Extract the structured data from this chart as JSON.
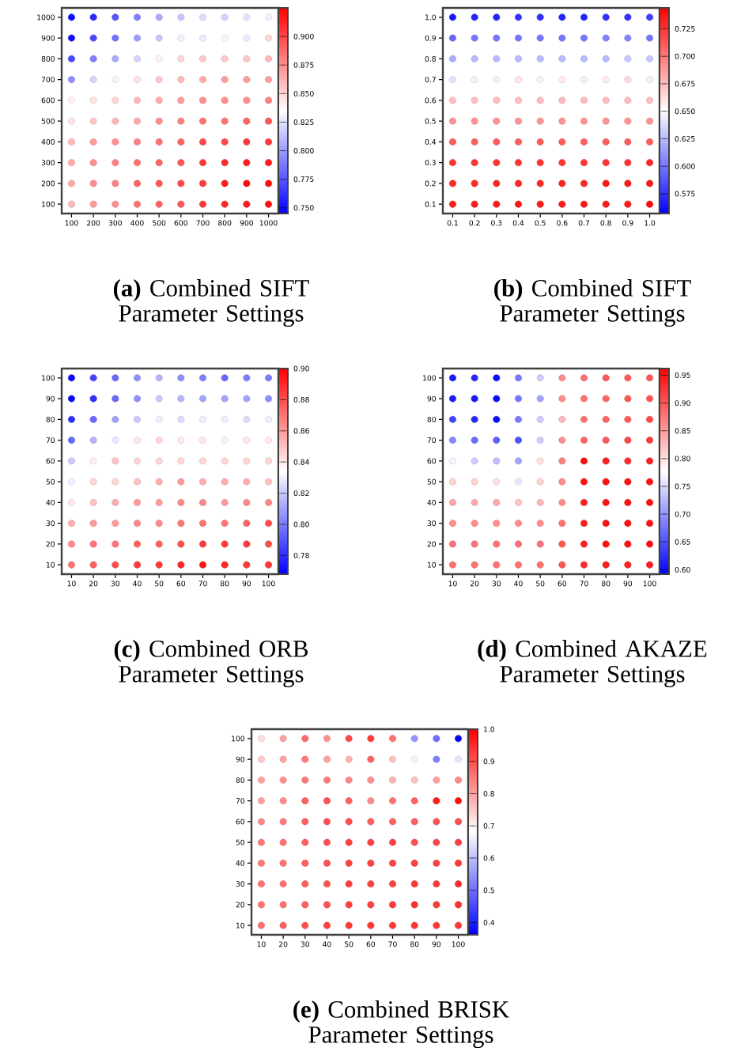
{
  "chart_data": [
    {
      "type": "scatter",
      "title": "**(a)** Combined SIFT Parameter Settings",
      "marker": "circle",
      "xlim": [
        55,
        1045
      ],
      "ylim": [
        55,
        1045
      ],
      "xticks": [
        100,
        200,
        300,
        400,
        500,
        600,
        700,
        800,
        900,
        1000
      ],
      "yticks": [
        100,
        200,
        300,
        400,
        500,
        600,
        700,
        800,
        900,
        1000
      ],
      "x": [
        100,
        200,
        300,
        400,
        500,
        600,
        700,
        800,
        900,
        1000,
        100,
        200,
        300,
        400,
        500,
        600,
        700,
        800,
        900,
        1000,
        100,
        200,
        300,
        400,
        500,
        600,
        700,
        800,
        900,
        1000,
        100,
        200,
        300,
        400,
        500,
        600,
        700,
        800,
        900,
        1000,
        100,
        200,
        300,
        400,
        500,
        600,
        700,
        800,
        900,
        1000,
        100,
        200,
        300,
        400,
        500,
        600,
        700,
        800,
        900,
        1000,
        100,
        200,
        300,
        400,
        500,
        600,
        700,
        800,
        900,
        1000,
        100,
        200,
        300,
        400,
        500,
        600,
        700,
        800,
        900,
        1000,
        100,
        200,
        300,
        400,
        500,
        600,
        700,
        800,
        900,
        1000,
        100,
        200,
        300,
        400,
        500,
        600,
        700,
        800,
        900,
        1000
      ],
      "values": [
        1000,
        1000,
        1000,
        1000,
        1000,
        1000,
        1000,
        1000,
        1000,
        1000,
        900,
        900,
        900,
        900,
        900,
        900,
        900,
        900,
        900,
        900,
        800,
        800,
        800,
        800,
        800,
        800,
        800,
        800,
        800,
        800,
        700,
        700,
        700,
        700,
        700,
        700,
        700,
        700,
        700,
        700,
        600,
        600,
        600,
        600,
        600,
        600,
        600,
        600,
        600,
        600,
        500,
        500,
        500,
        500,
        500,
        500,
        500,
        500,
        500,
        500,
        400,
        400,
        400,
        400,
        400,
        400,
        400,
        400,
        400,
        400,
        300,
        300,
        300,
        300,
        300,
        300,
        300,
        300,
        300,
        300,
        200,
        200,
        200,
        200,
        200,
        200,
        200,
        200,
        200,
        200,
        100,
        100,
        100,
        100,
        100,
        100,
        100,
        100,
        100,
        100
      ],
      "cvalues": [
        0.75,
        0.76,
        0.775,
        0.79,
        0.805,
        0.815,
        0.822,
        0.82,
        0.825,
        0.83,
        0.75,
        0.77,
        0.785,
        0.8,
        0.815,
        0.83,
        0.828,
        0.832,
        0.828,
        0.85,
        0.77,
        0.79,
        0.805,
        0.82,
        0.84,
        0.85,
        0.855,
        0.855,
        0.855,
        0.86,
        0.795,
        0.82,
        0.84,
        0.845,
        0.855,
        0.86,
        0.865,
        0.87,
        0.87,
        0.87,
        0.84,
        0.845,
        0.85,
        0.86,
        0.865,
        0.87,
        0.875,
        0.875,
        0.875,
        0.88,
        0.845,
        0.855,
        0.86,
        0.865,
        0.875,
        0.88,
        0.885,
        0.885,
        0.89,
        0.895,
        0.86,
        0.87,
        0.875,
        0.88,
        0.885,
        0.89,
        0.9,
        0.9,
        0.905,
        0.905,
        0.865,
        0.875,
        0.88,
        0.885,
        0.89,
        0.895,
        0.905,
        0.91,
        0.915,
        0.915,
        0.865,
        0.875,
        0.88,
        0.89,
        0.895,
        0.9,
        0.905,
        0.915,
        0.92,
        0.92,
        0.86,
        0.87,
        0.875,
        0.885,
        0.89,
        0.895,
        0.905,
        0.91,
        0.915,
        0.92
      ],
      "clim": [
        0.745,
        0.925
      ],
      "cticks": [
        {
          "value": 0.75,
          "label": "0.750"
        },
        0.775,
        {
          "value": 0.8,
          "label": "0.800"
        },
        0.825,
        {
          "value": 0.85,
          "label": "0.850"
        },
        0.875,
        {
          "value": 0.9,
          "label": "0.900"
        }
      ]
    },
    {
      "type": "scatter",
      "title": "**(b)** Combined SIFT Parameter Settings",
      "marker": "circle",
      "xlim": [
        0.055,
        1.045
      ],
      "ylim": [
        0.055,
        1.045
      ],
      "xticks": [
        0.1,
        0.2,
        0.3,
        0.4,
        0.5,
        0.6,
        0.7,
        0.8,
        0.9,
        {
          "value": 1.0,
          "label": "1.0"
        }
      ],
      "yticks": [
        0.1,
        0.2,
        0.3,
        0.4,
        0.5,
        0.6,
        0.7,
        0.8,
        0.9,
        {
          "value": 1.0,
          "label": "1.0"
        }
      ],
      "x": [
        0.1,
        0.2,
        0.3,
        0.4,
        0.5,
        0.6,
        0.7,
        0.8,
        0.9,
        1.0,
        0.1,
        0.2,
        0.3,
        0.4,
        0.5,
        0.6,
        0.7,
        0.8,
        0.9,
        1.0,
        0.1,
        0.2,
        0.3,
        0.4,
        0.5,
        0.6,
        0.7,
        0.8,
        0.9,
        1.0,
        0.1,
        0.2,
        0.3,
        0.4,
        0.5,
        0.6,
        0.7,
        0.8,
        0.9,
        1.0,
        0.1,
        0.2,
        0.3,
        0.4,
        0.5,
        0.6,
        0.7,
        0.8,
        0.9,
        1.0,
        0.1,
        0.2,
        0.3,
        0.4,
        0.5,
        0.6,
        0.7,
        0.8,
        0.9,
        1.0,
        0.1,
        0.2,
        0.3,
        0.4,
        0.5,
        0.6,
        0.7,
        0.8,
        0.9,
        1.0,
        0.1,
        0.2,
        0.3,
        0.4,
        0.5,
        0.6,
        0.7,
        0.8,
        0.9,
        1.0,
        0.1,
        0.2,
        0.3,
        0.4,
        0.5,
        0.6,
        0.7,
        0.8,
        0.9,
        1.0,
        0.1,
        0.2,
        0.3,
        0.4,
        0.5,
        0.6,
        0.7,
        0.8,
        0.9,
        1.0
      ],
      "values": [
        1.0,
        1.0,
        1.0,
        1.0,
        1.0,
        1.0,
        1.0,
        1.0,
        1.0,
        1.0,
        0.9,
        0.9,
        0.9,
        0.9,
        0.9,
        0.9,
        0.9,
        0.9,
        0.9,
        0.9,
        0.8,
        0.8,
        0.8,
        0.8,
        0.8,
        0.8,
        0.8,
        0.8,
        0.8,
        0.8,
        0.7,
        0.7,
        0.7,
        0.7,
        0.7,
        0.7,
        0.7,
        0.7,
        0.7,
        0.7,
        0.6,
        0.6,
        0.6,
        0.6,
        0.6,
        0.6,
        0.6,
        0.6,
        0.6,
        0.6,
        0.5,
        0.5,
        0.5,
        0.5,
        0.5,
        0.5,
        0.5,
        0.5,
        0.5,
        0.5,
        0.4,
        0.4,
        0.4,
        0.4,
        0.4,
        0.4,
        0.4,
        0.4,
        0.4,
        0.4,
        0.3,
        0.3,
        0.3,
        0.3,
        0.3,
        0.3,
        0.3,
        0.3,
        0.3,
        0.3,
        0.2,
        0.2,
        0.2,
        0.2,
        0.2,
        0.2,
        0.2,
        0.2,
        0.2,
        0.2,
        0.1,
        0.1,
        0.1,
        0.1,
        0.1,
        0.1,
        0.1,
        0.1,
        0.1,
        0.1
      ],
      "cvalues": [
        0.565,
        0.57,
        0.57,
        0.575,
        0.575,
        0.57,
        0.57,
        0.575,
        0.575,
        0.58,
        0.595,
        0.6,
        0.6,
        0.6,
        0.6,
        0.6,
        0.6,
        0.605,
        0.605,
        0.6,
        0.62,
        0.625,
        0.625,
        0.625,
        0.625,
        0.625,
        0.625,
        0.625,
        0.63,
        0.63,
        0.64,
        0.645,
        0.656,
        0.66,
        0.656,
        0.658,
        0.645,
        0.658,
        0.665,
        0.645,
        0.675,
        0.675,
        0.675,
        0.675,
        0.675,
        0.675,
        0.675,
        0.675,
        0.675,
        0.675,
        0.69,
        0.69,
        0.69,
        0.69,
        0.69,
        0.69,
        0.69,
        0.69,
        0.69,
        0.69,
        0.71,
        0.71,
        0.71,
        0.71,
        0.71,
        0.71,
        0.71,
        0.71,
        0.71,
        0.71,
        0.725,
        0.725,
        0.725,
        0.725,
        0.725,
        0.725,
        0.725,
        0.725,
        0.725,
        0.73,
        0.73,
        0.73,
        0.73,
        0.73,
        0.73,
        0.73,
        0.73,
        0.735,
        0.735,
        0.735,
        0.735,
        0.735,
        0.735,
        0.735,
        0.735,
        0.735,
        0.735,
        0.735,
        0.735,
        0.74
      ],
      "clim": [
        0.557,
        0.744
      ],
      "cticks": [
        0.575,
        {
          "value": 0.6,
          "label": "0.600"
        },
        0.625,
        {
          "value": 0.65,
          "label": "0.650"
        },
        0.675,
        {
          "value": 0.7,
          "label": "0.700"
        },
        0.725
      ]
    },
    {
      "type": "scatter",
      "title": "**(c)** Combined ORB Parameter Settings",
      "marker": "circle",
      "xlim": [
        5.5,
        104.5
      ],
      "ylim": [
        5.5,
        104.5
      ],
      "xticks": [
        10,
        20,
        30,
        40,
        50,
        60,
        70,
        80,
        90,
        100
      ],
      "yticks": [
        10,
        20,
        30,
        40,
        50,
        60,
        70,
        80,
        90,
        100
      ],
      "x": [
        10,
        20,
        30,
        40,
        50,
        60,
        70,
        80,
        90,
        100,
        10,
        20,
        30,
        40,
        50,
        60,
        70,
        80,
        90,
        100,
        10,
        20,
        30,
        40,
        50,
        60,
        70,
        80,
        90,
        100,
        10,
        20,
        30,
        40,
        50,
        60,
        70,
        80,
        90,
        100,
        10,
        20,
        30,
        40,
        50,
        60,
        70,
        80,
        90,
        100,
        10,
        20,
        30,
        40,
        50,
        60,
        70,
        80,
        90,
        100,
        10,
        20,
        30,
        40,
        50,
        60,
        70,
        80,
        90,
        100,
        10,
        20,
        30,
        40,
        50,
        60,
        70,
        80,
        90,
        100,
        10,
        20,
        30,
        40,
        50,
        60,
        70,
        80,
        90,
        100,
        10,
        20,
        30,
        40,
        50,
        60,
        70,
        80,
        90,
        100
      ],
      "values": [
        100,
        100,
        100,
        100,
        100,
        100,
        100,
        100,
        100,
        100,
        90,
        90,
        90,
        90,
        90,
        90,
        90,
        90,
        90,
        90,
        80,
        80,
        80,
        80,
        80,
        80,
        80,
        80,
        80,
        80,
        70,
        70,
        70,
        70,
        70,
        70,
        70,
        70,
        70,
        70,
        60,
        60,
        60,
        60,
        60,
        60,
        60,
        60,
        60,
        60,
        50,
        50,
        50,
        50,
        50,
        50,
        50,
        50,
        50,
        50,
        40,
        40,
        40,
        40,
        40,
        40,
        40,
        40,
        40,
        40,
        30,
        30,
        30,
        30,
        30,
        30,
        30,
        30,
        30,
        30,
        20,
        20,
        20,
        20,
        20,
        20,
        20,
        20,
        20,
        20,
        10,
        10,
        10,
        10,
        10,
        10,
        10,
        10,
        10,
        10
      ],
      "cvalues": [
        0.77,
        0.785,
        0.795,
        0.805,
        0.815,
        0.805,
        0.8,
        0.795,
        0.8,
        0.8,
        0.77,
        0.78,
        0.795,
        0.805,
        0.82,
        0.815,
        0.81,
        0.81,
        0.81,
        0.805,
        0.78,
        0.795,
        0.81,
        0.82,
        0.83,
        0.825,
        0.83,
        0.83,
        0.825,
        0.83,
        0.795,
        0.815,
        0.828,
        0.84,
        0.845,
        0.84,
        0.84,
        0.838,
        0.84,
        0.84,
        0.82,
        0.838,
        0.85,
        0.845,
        0.845,
        0.845,
        0.845,
        0.845,
        0.845,
        0.845,
        0.83,
        0.845,
        0.845,
        0.85,
        0.855,
        0.86,
        0.855,
        0.855,
        0.855,
        0.85,
        0.84,
        0.85,
        0.855,
        0.86,
        0.86,
        0.865,
        0.865,
        0.86,
        0.865,
        0.865,
        0.855,
        0.86,
        0.86,
        0.865,
        0.865,
        0.87,
        0.87,
        0.87,
        0.875,
        0.88,
        0.865,
        0.87,
        0.87,
        0.875,
        0.875,
        0.88,
        0.885,
        0.885,
        0.885,
        0.88,
        0.87,
        0.875,
        0.88,
        0.885,
        0.885,
        0.89,
        0.895,
        0.89,
        0.885,
        0.885
      ],
      "clim": [
        0.768,
        0.9
      ],
      "cticks": [
        0.78,
        {
          "value": 0.8,
          "label": "0.80"
        },
        0.82,
        0.84,
        0.86,
        0.88,
        {
          "value": 0.9,
          "label": "0.90"
        }
      ]
    },
    {
      "type": "scatter",
      "title": "**(d)** Combined AKAZE Parameter Settings",
      "marker": "circle",
      "xlim": [
        5.5,
        104.5
      ],
      "ylim": [
        5.5,
        104.5
      ],
      "xticks": [
        10,
        20,
        30,
        40,
        50,
        60,
        70,
        80,
        90,
        100
      ],
      "yticks": [
        10,
        20,
        30,
        40,
        50,
        60,
        70,
        80,
        90,
        100
      ],
      "x": [
        10,
        20,
        30,
        40,
        50,
        60,
        70,
        80,
        90,
        100,
        10,
        20,
        30,
        40,
        50,
        60,
        70,
        80,
        90,
        100,
        10,
        20,
        30,
        40,
        50,
        60,
        70,
        80,
        90,
        100,
        10,
        20,
        30,
        40,
        50,
        60,
        70,
        80,
        90,
        100,
        10,
        20,
        30,
        40,
        50,
        60,
        70,
        80,
        90,
        100,
        10,
        20,
        30,
        40,
        50,
        60,
        70,
        80,
        90,
        100,
        10,
        20,
        30,
        40,
        50,
        60,
        70,
        80,
        90,
        100,
        10,
        20,
        30,
        40,
        50,
        60,
        70,
        80,
        90,
        100,
        10,
        20,
        30,
        40,
        50,
        60,
        70,
        80,
        90,
        100,
        10,
        20,
        30,
        40,
        50,
        60,
        70,
        80,
        90,
        100
      ],
      "values": [
        100,
        100,
        100,
        100,
        100,
        100,
        100,
        100,
        100,
        100,
        90,
        90,
        90,
        90,
        90,
        90,
        90,
        90,
        90,
        90,
        80,
        80,
        80,
        80,
        80,
        80,
        80,
        80,
        80,
        80,
        70,
        70,
        70,
        70,
        70,
        70,
        70,
        70,
        70,
        70,
        60,
        60,
        60,
        60,
        60,
        60,
        60,
        60,
        60,
        60,
        50,
        50,
        50,
        50,
        50,
        50,
        50,
        50,
        50,
        50,
        40,
        40,
        40,
        40,
        40,
        40,
        40,
        40,
        40,
        40,
        30,
        30,
        30,
        30,
        30,
        30,
        30,
        30,
        30,
        30,
        20,
        20,
        20,
        20,
        20,
        20,
        20,
        20,
        20,
        20,
        10,
        10,
        10,
        10,
        10,
        10,
        10,
        10,
        10,
        10
      ],
      "cvalues": [
        0.61,
        0.62,
        0.6,
        0.68,
        0.74,
        0.86,
        0.88,
        0.9,
        0.9,
        0.9,
        0.61,
        0.61,
        0.6,
        0.68,
        0.71,
        0.86,
        0.88,
        0.89,
        0.9,
        0.9,
        0.64,
        0.62,
        0.6,
        0.68,
        0.74,
        0.83,
        0.88,
        0.89,
        0.9,
        0.91,
        0.69,
        0.67,
        0.66,
        0.65,
        0.74,
        0.86,
        0.89,
        0.9,
        0.91,
        0.92,
        0.77,
        0.74,
        0.73,
        0.71,
        0.8,
        0.87,
        0.95,
        0.94,
        0.93,
        0.94,
        0.81,
        0.81,
        0.8,
        0.76,
        0.81,
        0.86,
        0.95,
        0.95,
        0.95,
        0.95,
        0.84,
        0.84,
        0.84,
        0.82,
        0.83,
        0.86,
        0.94,
        0.95,
        0.95,
        0.95,
        0.86,
        0.86,
        0.86,
        0.86,
        0.86,
        0.88,
        0.94,
        0.95,
        0.95,
        0.95,
        0.88,
        0.88,
        0.88,
        0.88,
        0.88,
        0.9,
        0.94,
        0.95,
        0.95,
        0.95,
        0.88,
        0.88,
        0.88,
        0.88,
        0.88,
        0.9,
        0.93,
        0.94,
        0.94,
        0.94
      ],
      "clim": [
        0.592,
        0.962
      ],
      "cticks": [
        {
          "value": 0.6,
          "label": "0.60"
        },
        0.65,
        {
          "value": 0.7,
          "label": "0.70"
        },
        0.75,
        {
          "value": 0.8,
          "label": "0.80"
        },
        0.85,
        {
          "value": 0.9,
          "label": "0.90"
        },
        0.95
      ]
    },
    {
      "type": "scatter",
      "title": "**(e)** Combined BRISK Parameter Settings",
      "marker": "circle",
      "xlim": [
        5.5,
        104.5
      ],
      "ylim": [
        5.5,
        104.5
      ],
      "xticks": [
        10,
        20,
        30,
        40,
        50,
        60,
        70,
        80,
        90,
        100
      ],
      "yticks": [
        10,
        20,
        30,
        40,
        50,
        60,
        70,
        80,
        90,
        100
      ],
      "x": [
        10,
        20,
        30,
        40,
        50,
        60,
        70,
        80,
        90,
        100,
        10,
        20,
        30,
        40,
        50,
        60,
        70,
        80,
        90,
        100,
        10,
        20,
        30,
        40,
        50,
        60,
        70,
        80,
        90,
        100,
        10,
        20,
        30,
        40,
        50,
        60,
        70,
        80,
        90,
        100,
        10,
        20,
        30,
        40,
        50,
        60,
        70,
        80,
        90,
        100,
        10,
        20,
        30,
        40,
        50,
        60,
        70,
        80,
        90,
        100,
        10,
        20,
        30,
        40,
        50,
        60,
        70,
        80,
        90,
        100,
        10,
        20,
        30,
        40,
        50,
        60,
        70,
        80,
        90,
        100,
        10,
        20,
        30,
        40,
        50,
        60,
        70,
        80,
        90,
        100,
        10,
        20,
        30,
        40,
        50,
        60,
        70,
        80,
        90,
        100
      ],
      "values": [
        100,
        100,
        100,
        100,
        100,
        100,
        100,
        100,
        100,
        100,
        90,
        90,
        90,
        90,
        90,
        90,
        90,
        90,
        90,
        90,
        80,
        80,
        80,
        80,
        80,
        80,
        80,
        80,
        80,
        80,
        70,
        70,
        70,
        70,
        70,
        70,
        70,
        70,
        70,
        70,
        60,
        60,
        60,
        60,
        60,
        60,
        60,
        60,
        60,
        60,
        50,
        50,
        50,
        50,
        50,
        50,
        50,
        50,
        50,
        50,
        40,
        40,
        40,
        40,
        40,
        40,
        40,
        40,
        40,
        40,
        30,
        30,
        30,
        30,
        30,
        30,
        30,
        30,
        30,
        30,
        20,
        20,
        20,
        20,
        20,
        20,
        20,
        20,
        20,
        20,
        10,
        10,
        10,
        10,
        10,
        10,
        10,
        10,
        10,
        10
      ],
      "cvalues": [
        0.72,
        0.8,
        0.87,
        0.82,
        0.91,
        0.93,
        0.86,
        0.55,
        0.5,
        0.37,
        0.75,
        0.8,
        0.85,
        0.8,
        0.78,
        0.88,
        0.76,
        0.7,
        0.52,
        0.65,
        0.8,
        0.82,
        0.85,
        0.85,
        0.83,
        0.82,
        0.78,
        0.76,
        0.8,
        0.83,
        0.8,
        0.83,
        0.88,
        0.9,
        0.88,
        0.83,
        0.86,
        0.88,
        0.97,
        0.98,
        0.83,
        0.85,
        0.88,
        0.9,
        0.9,
        0.88,
        0.88,
        0.88,
        0.9,
        0.9,
        0.85,
        0.86,
        0.88,
        0.9,
        0.92,
        0.92,
        0.92,
        0.9,
        0.91,
        0.92,
        0.85,
        0.86,
        0.88,
        0.9,
        0.92,
        0.92,
        0.92,
        0.92,
        0.92,
        0.93,
        0.86,
        0.86,
        0.88,
        0.9,
        0.92,
        0.92,
        0.92,
        0.93,
        0.93,
        0.95,
        0.86,
        0.86,
        0.88,
        0.9,
        0.92,
        0.92,
        0.93,
        0.94,
        0.93,
        0.94,
        0.86,
        0.88,
        0.9,
        0.92,
        0.93,
        0.93,
        0.93,
        0.93,
        0.93,
        0.93
      ],
      "clim": [
        0.362,
        1.0
      ],
      "cticks": [
        0.4,
        0.5,
        0.6,
        0.7,
        0.8,
        0.9,
        {
          "value": 1.0,
          "label": "1.0"
        }
      ]
    }
  ]
}
